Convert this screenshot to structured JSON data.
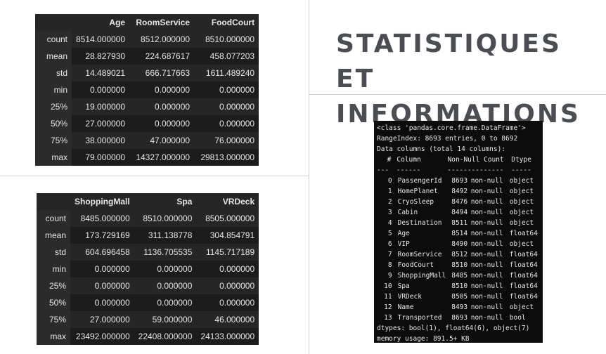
{
  "title": {
    "line1": "STATISTIQUES ET",
    "line2": "INFORMATIONS"
  },
  "describe1": {
    "columns": [
      "Age",
      "RoomService",
      "FoodCourt"
    ],
    "rows": [
      {
        "label": "count",
        "values": [
          "8514.000000",
          "8512.000000",
          "8510.000000"
        ]
      },
      {
        "label": "mean",
        "values": [
          "28.827930",
          "224.687617",
          "458.077203"
        ]
      },
      {
        "label": "std",
        "values": [
          "14.489021",
          "666.717663",
          "1611.489240"
        ]
      },
      {
        "label": "min",
        "values": [
          "0.000000",
          "0.000000",
          "0.000000"
        ]
      },
      {
        "label": "25%",
        "values": [
          "19.000000",
          "0.000000",
          "0.000000"
        ]
      },
      {
        "label": "50%",
        "values": [
          "27.000000",
          "0.000000",
          "0.000000"
        ]
      },
      {
        "label": "75%",
        "values": [
          "38.000000",
          "47.000000",
          "76.000000"
        ]
      },
      {
        "label": "max",
        "values": [
          "79.000000",
          "14327.000000",
          "29813.000000"
        ]
      }
    ]
  },
  "describe2": {
    "columns": [
      "ShoppingMall",
      "Spa",
      "VRDeck"
    ],
    "rows": [
      {
        "label": "count",
        "values": [
          "8485.000000",
          "8510.000000",
          "8505.000000"
        ]
      },
      {
        "label": "mean",
        "values": [
          "173.729169",
          "311.138778",
          "304.854791"
        ]
      },
      {
        "label": "std",
        "values": [
          "604.696458",
          "1136.705535",
          "1145.717189"
        ]
      },
      {
        "label": "min",
        "values": [
          "0.000000",
          "0.000000",
          "0.000000"
        ]
      },
      {
        "label": "25%",
        "values": [
          "0.000000",
          "0.000000",
          "0.000000"
        ]
      },
      {
        "label": "50%",
        "values": [
          "0.000000",
          "0.000000",
          "0.000000"
        ]
      },
      {
        "label": "75%",
        "values": [
          "27.000000",
          "59.000000",
          "46.000000"
        ]
      },
      {
        "label": "max",
        "values": [
          "23492.000000",
          "22408.000000",
          "24133.000000"
        ]
      }
    ]
  },
  "info": {
    "class_line": "<class 'pandas.core.frame.DataFrame'>",
    "range_line": "RangeIndex: 8693 entries, 0 to 8692",
    "columns_line": "Data columns (total 14 columns):",
    "header": {
      "idx": "#",
      "column": "Column",
      "nonnull": "Non-Null Count",
      "dtype": "Dtype"
    },
    "separator": {
      "idx": "---",
      "column": "------",
      "nonnull": "--------------",
      "dtype": "-----"
    },
    "rows": [
      {
        "idx": "0",
        "column": "PassengerId",
        "count": "8693",
        "nonnull": "non-null",
        "dtype": "object"
      },
      {
        "idx": "1",
        "column": "HomePlanet",
        "count": "8492",
        "nonnull": "non-null",
        "dtype": "object"
      },
      {
        "idx": "2",
        "column": "CryoSleep",
        "count": "8476",
        "nonnull": "non-null",
        "dtype": "object"
      },
      {
        "idx": "3",
        "column": "Cabin",
        "count": "8494",
        "nonnull": "non-null",
        "dtype": "object"
      },
      {
        "idx": "4",
        "column": "Destination",
        "count": "8511",
        "nonnull": "non-null",
        "dtype": "object"
      },
      {
        "idx": "5",
        "column": "Age",
        "count": "8514",
        "nonnull": "non-null",
        "dtype": "float64"
      },
      {
        "idx": "6",
        "column": "VIP",
        "count": "8490",
        "nonnull": "non-null",
        "dtype": "object"
      },
      {
        "idx": "7",
        "column": "RoomService",
        "count": "8512",
        "nonnull": "non-null",
        "dtype": "float64"
      },
      {
        "idx": "8",
        "column": "FoodCourt",
        "count": "8510",
        "nonnull": "non-null",
        "dtype": "float64"
      },
      {
        "idx": "9",
        "column": "ShoppingMall",
        "count": "8485",
        "nonnull": "non-null",
        "dtype": "float64"
      },
      {
        "idx": "10",
        "column": "Spa",
        "count": "8510",
        "nonnull": "non-null",
        "dtype": "float64"
      },
      {
        "idx": "11",
        "column": "VRDeck",
        "count": "8505",
        "nonnull": "non-null",
        "dtype": "float64"
      },
      {
        "idx": "12",
        "column": "Name",
        "count": "8493",
        "nonnull": "non-null",
        "dtype": "object"
      },
      {
        "idx": "13",
        "column": "Transported",
        "count": "8693",
        "nonnull": "non-null",
        "dtype": "bool"
      }
    ],
    "dtypes_line": "dtypes: bool(1), float64(6), object(7)",
    "memory_line": "memory usage: 891.5+ KB"
  }
}
